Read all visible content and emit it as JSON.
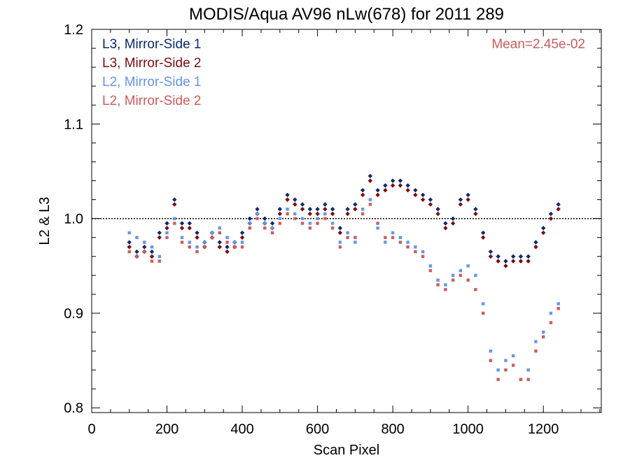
{
  "chart_data": {
    "type": "scatter",
    "title": "MODIS/Aqua AV96 nLw(678) for 2011 289",
    "xlabel": "Scan Pixel",
    "ylabel": "L2 & L3",
    "xlim": [
      0,
      1354
    ],
    "ylim": [
      0.795,
      1.2
    ],
    "xticks": [
      0,
      200,
      400,
      600,
      800,
      1000,
      1200
    ],
    "xtick_labels": [
      "0",
      "200",
      "400",
      "600",
      "800",
      "1000",
      "1200"
    ],
    "yticks": [
      0.8,
      0.9,
      1.0,
      1.1,
      1.2
    ],
    "ytick_labels": [
      "0.8",
      "0.9",
      "1.0",
      "1.1",
      "1.2"
    ],
    "reference_line": 1.0,
    "annotation": "Mean=2.45e-02",
    "annotation_color": "#cd5c5c",
    "legend_position": "top-left",
    "series": [
      {
        "name": "L3, Mirror-Side 1",
        "color": "#0a2a6e",
        "marker": "diamond",
        "x": [
          100,
          120,
          140,
          160,
          180,
          200,
          220,
          240,
          260,
          280,
          300,
          320,
          340,
          360,
          380,
          400,
          420,
          440,
          460,
          480,
          500,
          520,
          540,
          560,
          580,
          600,
          620,
          640,
          660,
          680,
          700,
          720,
          740,
          760,
          780,
          800,
          820,
          840,
          860,
          880,
          900,
          920,
          940,
          960,
          980,
          1000,
          1020,
          1040,
          1060,
          1080,
          1100,
          1120,
          1140,
          1160,
          1180,
          1200,
          1220,
          1240
        ],
        "y": [
          0.975,
          0.965,
          0.97,
          0.965,
          0.985,
          0.995,
          1.02,
          0.995,
          0.995,
          0.985,
          0.975,
          0.985,
          0.975,
          0.97,
          0.975,
          0.985,
          1.0,
          1.01,
          1.0,
          0.995,
          1.01,
          1.025,
          1.02,
          1.015,
          1.01,
          1.01,
          1.015,
          1.01,
          0.99,
          1.01,
          1.015,
          1.03,
          1.045,
          1.03,
          1.035,
          1.04,
          1.04,
          1.035,
          1.03,
          1.025,
          1.02,
          1.01,
          0.995,
          1.0,
          1.02,
          1.025,
          1.01,
          0.985,
          0.965,
          0.96,
          0.955,
          0.96,
          0.96,
          0.96,
          0.975,
          0.99,
          1.005,
          1.015
        ]
      },
      {
        "name": "L3, Mirror-Side 2",
        "color": "#7a0a12",
        "marker": "diamond",
        "x": [
          100,
          120,
          140,
          160,
          180,
          200,
          220,
          240,
          260,
          280,
          300,
          320,
          340,
          360,
          380,
          400,
          420,
          440,
          460,
          480,
          500,
          520,
          540,
          560,
          580,
          600,
          620,
          640,
          660,
          680,
          700,
          720,
          740,
          760,
          780,
          800,
          820,
          840,
          860,
          880,
          900,
          920,
          940,
          960,
          980,
          1000,
          1020,
          1040,
          1060,
          1080,
          1100,
          1120,
          1140,
          1160,
          1180,
          1200,
          1220,
          1240
        ],
        "y": [
          0.97,
          0.96,
          0.965,
          0.96,
          0.98,
          0.99,
          1.015,
          0.99,
          0.99,
          0.98,
          0.97,
          0.98,
          0.97,
          0.965,
          0.97,
          0.98,
          0.995,
          1.005,
          0.995,
          0.99,
          1.005,
          1.02,
          1.015,
          1.01,
          1.005,
          1.005,
          1.01,
          1.005,
          0.985,
          1.005,
          1.01,
          1.025,
          1.04,
          1.025,
          1.03,
          1.035,
          1.035,
          1.03,
          1.025,
          1.02,
          1.015,
          1.005,
          0.99,
          0.995,
          1.015,
          1.02,
          1.005,
          0.98,
          0.96,
          0.955,
          0.95,
          0.955,
          0.955,
          0.955,
          0.97,
          0.985,
          1.0,
          1.01
        ]
      },
      {
        "name": "L2, Mirror-Side 1",
        "color": "#6495ed",
        "marker": "square",
        "x": [
          100,
          120,
          140,
          160,
          180,
          200,
          220,
          240,
          260,
          280,
          300,
          320,
          340,
          360,
          380,
          400,
          420,
          440,
          460,
          480,
          500,
          520,
          540,
          560,
          580,
          600,
          620,
          640,
          660,
          680,
          700,
          720,
          740,
          760,
          780,
          800,
          820,
          840,
          860,
          880,
          900,
          920,
          940,
          960,
          980,
          1000,
          1020,
          1040,
          1060,
          1080,
          1100,
          1120,
          1140,
          1160,
          1180,
          1200,
          1220,
          1240
        ],
        "y": [
          0.985,
          0.98,
          0.975,
          0.97,
          0.96,
          0.985,
          1.0,
          0.98,
          0.975,
          0.97,
          0.975,
          0.985,
          0.99,
          0.98,
          0.975,
          0.975,
          0.995,
          1.005,
          0.995,
          0.99,
          1.0,
          1.01,
          1.005,
          1.0,
          0.995,
          1.0,
          1.005,
          0.995,
          0.975,
          0.985,
          0.975,
          1.01,
          1.02,
          0.99,
          0.975,
          0.985,
          0.98,
          0.975,
          0.97,
          0.965,
          0.95,
          0.935,
          0.93,
          0.94,
          0.945,
          0.95,
          0.94,
          0.91,
          0.86,
          0.84,
          0.85,
          0.855,
          0.83,
          0.84,
          0.87,
          0.88,
          0.9,
          0.91
        ]
      },
      {
        "name": "L2, Mirror-Side 2",
        "color": "#cd5c5c",
        "marker": "square",
        "x": [
          100,
          120,
          140,
          160,
          180,
          200,
          220,
          240,
          260,
          280,
          300,
          320,
          340,
          360,
          380,
          400,
          420,
          440,
          460,
          480,
          500,
          520,
          540,
          560,
          580,
          600,
          620,
          640,
          660,
          680,
          700,
          720,
          740,
          760,
          780,
          800,
          820,
          840,
          860,
          880,
          900,
          920,
          940,
          960,
          980,
          1000,
          1020,
          1040,
          1060,
          1080,
          1100,
          1120,
          1140,
          1160,
          1180,
          1200,
          1220,
          1240
        ],
        "y": [
          0.965,
          0.96,
          0.965,
          0.955,
          0.955,
          0.98,
          0.995,
          0.975,
          0.97,
          0.965,
          0.97,
          0.98,
          0.985,
          0.975,
          0.97,
          0.97,
          0.99,
          1.0,
          0.99,
          0.985,
          0.995,
          1.005,
          1.0,
          0.995,
          0.99,
          0.995,
          1.0,
          0.99,
          0.97,
          0.98,
          0.98,
          1.005,
          1.015,
          0.995,
          0.98,
          0.98,
          0.975,
          0.97,
          0.965,
          0.96,
          0.945,
          0.93,
          0.925,
          0.935,
          0.94,
          0.935,
          0.925,
          0.9,
          0.85,
          0.83,
          0.84,
          0.845,
          0.83,
          0.83,
          0.86,
          0.875,
          0.89,
          0.905
        ]
      }
    ]
  }
}
